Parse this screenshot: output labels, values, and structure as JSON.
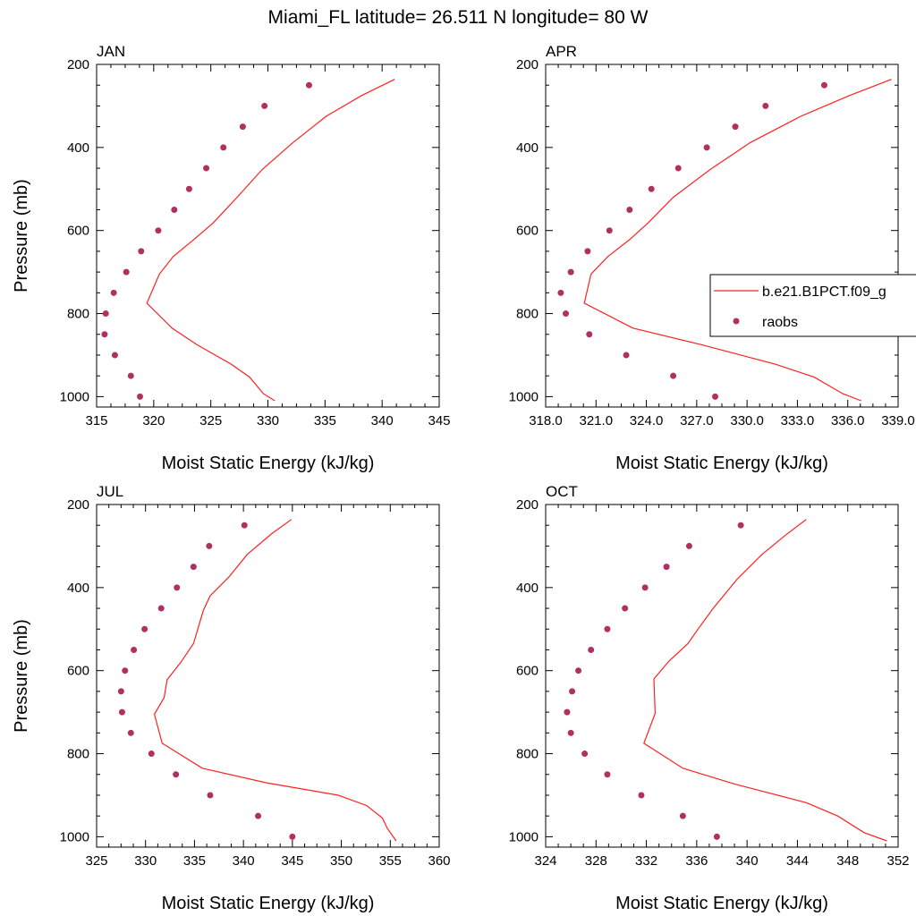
{
  "figure": {
    "title": "Miami_FL  latitude= 26.511 N longitude= 80 W"
  },
  "legend": {
    "entries": [
      "b.e21.B1PCT.f09_g",
      "raobs"
    ],
    "colors": {
      "model": "#ff2020",
      "raobs": "#b03060"
    }
  },
  "chart_data": [
    {
      "type": "line",
      "panel": "JAN",
      "xlabel": "Moist Static Energy (kJ/kg)",
      "ylabel": "Pressure (mb)",
      "xlim": [
        315,
        345
      ],
      "ylim": [
        1025,
        200
      ],
      "xticks": [
        315,
        320,
        325,
        330,
        335,
        340,
        345
      ],
      "xtick_labels": [
        "315",
        "320",
        "325",
        "330",
        "335",
        "340",
        "345"
      ],
      "yticks": [
        200,
        400,
        600,
        800,
        1000
      ],
      "ytick_labels": [
        "200",
        "400",
        "600",
        "800",
        "1000"
      ],
      "series": [
        {
          "name": "b.e21.B1PCT.f09_g",
          "style": "line",
          "x": [
            341.1,
            338.2,
            335.1,
            332.2,
            329.5,
            327.3,
            325.2,
            323.5,
            321.7,
            320.5,
            319.4,
            321.6,
            323.8,
            326.8,
            328.4,
            329.6,
            330.6
          ],
          "y": [
            236,
            275,
            325,
            388,
            453,
            520,
            582,
            622,
            663,
            705,
            775,
            835,
            875,
            922,
            953,
            993,
            1010
          ]
        },
        {
          "name": "raobs",
          "style": "scatter",
          "x": [
            333.6,
            329.7,
            327.8,
            326.1,
            324.6,
            323.1,
            321.8,
            320.4,
            318.9,
            317.6,
            316.5,
            315.8,
            315.7,
            316.6,
            318.0,
            318.8
          ],
          "y": [
            250,
            300,
            350,
            400,
            450,
            500,
            550,
            600,
            650,
            700,
            750,
            800,
            850,
            900,
            950,
            1000
          ]
        }
      ]
    },
    {
      "type": "line",
      "panel": "APR",
      "xlabel": "Moist Static Energy (kJ/kg)",
      "ylabel": "",
      "xlim": [
        318.0,
        339.0
      ],
      "ylim": [
        1025,
        200
      ],
      "xticks": [
        318,
        321,
        324,
        327,
        330,
        333,
        336,
        339
      ],
      "xtick_labels": [
        "318.0",
        "321.0",
        "324.0",
        "327.0",
        "330.0",
        "333.0",
        "336.0",
        "339.0"
      ],
      "yticks": [
        200,
        400,
        600,
        800,
        1000
      ],
      "ytick_labels": [
        "200",
        "400",
        "600",
        "800",
        "1000"
      ],
      "series": [
        {
          "name": "b.e21.B1PCT.f09_g",
          "style": "line",
          "x": [
            338.6,
            336.1,
            333.2,
            330.2,
            327.8,
            325.6,
            324.1,
            323.0,
            321.7,
            320.7,
            320.3,
            323.2,
            327.3,
            331.7,
            334.0,
            335.7,
            336.8
          ],
          "y": [
            236,
            275,
            325,
            388,
            453,
            520,
            582,
            622,
            663,
            705,
            775,
            835,
            875,
            922,
            953,
            993,
            1010
          ]
        },
        {
          "name": "raobs",
          "style": "scatter",
          "x": [
            334.6,
            331.1,
            329.3,
            327.6,
            325.9,
            324.3,
            323.0,
            321.8,
            320.5,
            319.5,
            318.9,
            319.2,
            320.6,
            322.8,
            325.6,
            328.1
          ],
          "y": [
            250,
            300,
            350,
            400,
            450,
            500,
            550,
            600,
            650,
            700,
            750,
            800,
            850,
            900,
            950,
            1000
          ]
        }
      ]
    },
    {
      "type": "line",
      "panel": "JUL",
      "xlabel": "Moist Static Energy (kJ/kg)",
      "ylabel": "Pressure (mb)",
      "xlim": [
        325,
        360
      ],
      "ylim": [
        1025,
        200
      ],
      "xticks": [
        325,
        330,
        335,
        340,
        345,
        350,
        355,
        360
      ],
      "xtick_labels": [
        "325",
        "330",
        "335",
        "340",
        "345",
        "350",
        "355",
        "360"
      ],
      "yticks": [
        200,
        400,
        600,
        800,
        1000
      ],
      "ytick_labels": [
        "200",
        "400",
        "600",
        "800",
        "1000"
      ],
      "series": [
        {
          "name": "b.e21.B1PCT.f09_g",
          "style": "line",
          "x": [
            344.9,
            342.9,
            340.4,
            338.5,
            336.6,
            335.9,
            334.9,
            333.6,
            332.2,
            331.9,
            330.9,
            331.7,
            335.8,
            342.3,
            349.7,
            352.6,
            354.2,
            354.7,
            355.6
          ],
          "y": [
            236,
            270,
            320,
            375,
            420,
            455,
            535,
            580,
            622,
            665,
            705,
            775,
            835,
            870,
            900,
            925,
            955,
            980,
            1010
          ]
        },
        {
          "name": "raobs",
          "style": "scatter",
          "x": [
            340.1,
            336.5,
            334.9,
            333.2,
            331.6,
            329.9,
            328.8,
            327.9,
            327.5,
            327.6,
            328.5,
            330.6,
            333.1,
            336.6,
            341.5,
            345.0
          ],
          "y": [
            250,
            300,
            350,
            400,
            450,
            500,
            550,
            600,
            650,
            700,
            750,
            800,
            850,
            900,
            950,
            1000
          ]
        }
      ]
    },
    {
      "type": "line",
      "panel": "OCT",
      "xlabel": "Moist Static Energy (kJ/kg)",
      "ylabel": "",
      "xlim": [
        324,
        352
      ],
      "ylim": [
        1025,
        200
      ],
      "xticks": [
        324,
        328,
        332,
        336,
        340,
        344,
        348,
        352
      ],
      "xtick_labels": [
        "324",
        "328",
        "332",
        "336",
        "340",
        "344",
        "348",
        "352"
      ],
      "yticks": [
        200,
        400,
        600,
        800,
        1000
      ],
      "ytick_labels": [
        "200",
        "400",
        "600",
        "800",
        "1000"
      ],
      "series": [
        {
          "name": "b.e21.B1PCT.f09_g",
          "style": "line",
          "x": [
            344.7,
            343.0,
            341.2,
            339.2,
            337.3,
            336.1,
            335.3,
            333.8,
            332.6,
            332.7,
            331.8,
            334.9,
            339.0,
            344.7,
            347.2,
            349.3,
            351.1
          ],
          "y": [
            236,
            275,
            320,
            380,
            450,
            500,
            535,
            577,
            620,
            703,
            775,
            835,
            873,
            918,
            950,
            990,
            1010
          ]
        },
        {
          "name": "raobs",
          "style": "scatter",
          "x": [
            339.5,
            335.4,
            333.6,
            331.9,
            330.3,
            328.9,
            327.6,
            326.6,
            326.1,
            325.7,
            326.0,
            327.1,
            328.9,
            331.6,
            334.9,
            337.6
          ],
          "y": [
            250,
            300,
            350,
            400,
            450,
            500,
            550,
            600,
            650,
            700,
            750,
            800,
            850,
            900,
            950,
            1000
          ]
        }
      ]
    }
  ]
}
